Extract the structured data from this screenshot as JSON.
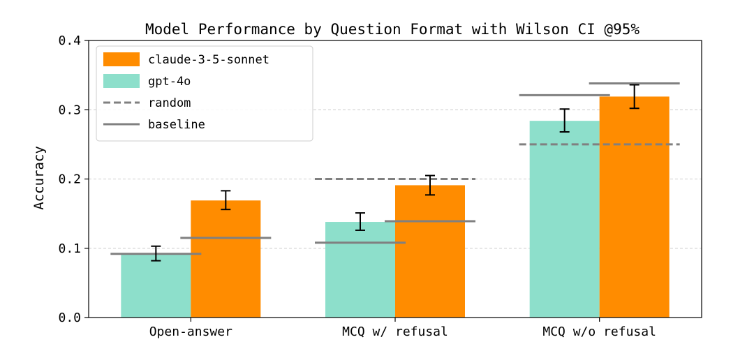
{
  "chart_data": {
    "type": "bar",
    "title": "Model Performance by Question Format with Wilson CI @95%",
    "xlabel": "",
    "ylabel": "Accuracy",
    "ylim": [
      0,
      0.4
    ],
    "yticks": [
      0.0,
      0.1,
      0.2,
      0.3,
      0.4
    ],
    "ytick_labels": [
      "0.0",
      "0.1",
      "0.2",
      "0.3",
      "0.4"
    ],
    "grid": "horizontal dashed",
    "legend_placement": "top-left",
    "categories": [
      "Open-answer",
      "MCQ w/ refusal",
      "MCQ w/o refusal"
    ],
    "series": [
      {
        "name": "gpt-4o",
        "color": "#8ddfcb",
        "values": [
          0.092,
          0.138,
          0.284
        ],
        "ci_low": [
          0.082,
          0.126,
          0.268
        ],
        "ci_high": [
          0.103,
          0.151,
          0.301
        ]
      },
      {
        "name": "claude-3-5-sonnet",
        "color": "#ff8c00",
        "values": [
          0.169,
          0.191,
          0.319
        ],
        "ci_low": [
          0.156,
          0.177,
          0.302
        ],
        "ci_high": [
          0.183,
          0.205,
          0.336
        ]
      }
    ],
    "random": {
      "name": "random",
      "style": "dashed",
      "color": "#808080",
      "values": [
        null,
        0.2,
        0.25
      ]
    },
    "baseline": {
      "name": "baseline",
      "style": "solid",
      "color": "#808080",
      "gpt_values": [
        0.092,
        0.108,
        0.321
      ],
      "claude_values": [
        0.115,
        0.139,
        0.338
      ]
    },
    "legend": [
      "claude-3-5-sonnet",
      "gpt-4o",
      "random",
      "baseline"
    ]
  }
}
